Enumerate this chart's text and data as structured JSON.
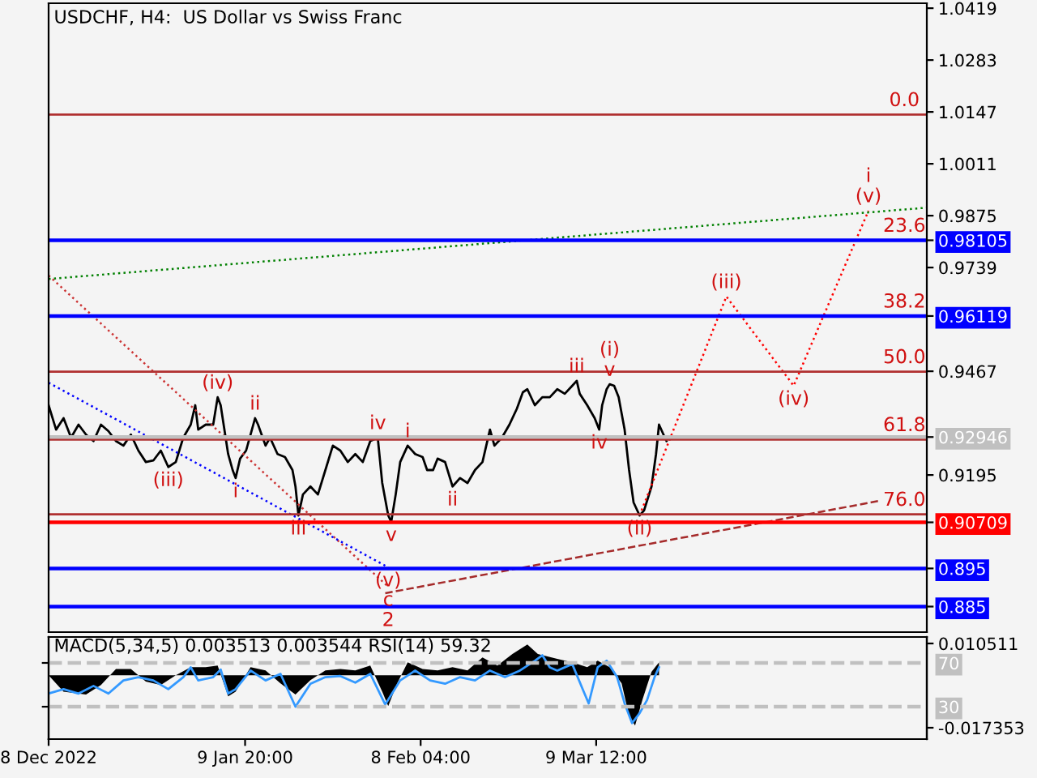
{
  "chart_data": [
    {
      "type": "line",
      "title": "USDCHF, H4:  US Dollar vs Swiss Franc",
      "xlim": [
        "2022-12-08T00:00",
        "2023-05-03T18:00"
      ],
      "ylim": [
        0.8783,
        1.0432
      ],
      "yticks": [
        1.0419,
        1.0283,
        1.0147,
        1.0011,
        0.9875,
        0.98105,
        0.9739,
        0.96119,
        0.9467,
        0.92946,
        0.9195,
        0.90709,
        0.895,
        0.885
      ],
      "tick_labels": "y",
      "grid": false,
      "legend": false,
      "series": [
        {
          "color": "#000000",
          "x": [
            "2022-12-08T00:00",
            "2022-12-09T06:00",
            "2022-12-10T12:00",
            "2022-12-11T18:00",
            "2022-12-13T00:00",
            "2022-12-14T06:00",
            "2022-12-15T12:00",
            "2022-12-16T18:00",
            "2022-12-18T00:00",
            "2022-12-19T06:00",
            "2022-12-20T12:00",
            "2022-12-21T18:00",
            "2022-12-23T00:00",
            "2022-12-24T06:00",
            "2022-12-25T12:00",
            "2022-12-26T18:00",
            "2022-12-28T00:00",
            "2022-12-29T06:00",
            "2022-12-30T12:00",
            "2022-12-31T18:00",
            "2023-01-01T12:00",
            "2023-01-02T00:00",
            "2023-01-03T06:00",
            "2023-01-04T12:00",
            "2023-01-05T06:00",
            "2023-01-05T18:00",
            "2023-01-07T00:00",
            "2023-01-07T18:00",
            "2023-01-08T06:00",
            "2023-01-09T00:00",
            "2023-01-10T00:00",
            "2023-01-10T18:00",
            "2023-01-11T12:00",
            "2023-01-12T00:00",
            "2023-01-13T06:00",
            "2023-01-14T00:00",
            "2023-01-15T06:00",
            "2023-01-16T12:00",
            "2023-01-17T18:00",
            "2023-01-18T06:00",
            "2023-01-18T18:00",
            "2023-01-19T12:00",
            "2023-01-20T18:00",
            "2023-01-22T00:00",
            "2023-01-23T06:00",
            "2023-01-24T12:00",
            "2023-01-25T18:00",
            "2023-01-27T00:00",
            "2023-01-28T06:00",
            "2023-01-29T12:00",
            "2023-01-30T18:00",
            "2023-02-01T00:00",
            "2023-02-01T18:00",
            "2023-02-02T18:00",
            "2023-02-03T06:00",
            "2023-02-04T00:00",
            "2023-02-04T18:00",
            "2023-02-06T00:00",
            "2023-02-07T06:00",
            "2023-02-08T12:00",
            "2023-02-09T06:00",
            "2023-02-10T06:00",
            "2023-02-11T00:00",
            "2023-02-12T06:00",
            "2023-02-13T12:00",
            "2023-02-14T18:00",
            "2023-02-16T00:00",
            "2023-02-17T06:00",
            "2023-02-18T12:00",
            "2023-02-19T18:00",
            "2023-02-20T12:00",
            "2023-02-21T18:00",
            "2023-02-23T00:00",
            "2023-02-24T06:00",
            "2023-02-25T06:00",
            "2023-02-26T00:00",
            "2023-02-27T06:00",
            "2023-02-28T12:00",
            "2023-03-01T18:00",
            "2023-03-03T00:00",
            "2023-03-04T06:00",
            "2023-03-05T12:00",
            "2023-03-06T06:00",
            "2023-03-06T18:00",
            "2023-03-08T00:00",
            "2023-03-09T06:00",
            "2023-03-10T00:00",
            "2023-03-10T12:00",
            "2023-03-11T06:00",
            "2023-03-11T18:00",
            "2023-03-12T12:00",
            "2023-03-13T06:00",
            "2023-03-14T06:00",
            "2023-03-15T00:00",
            "2023-03-15T18:00",
            "2023-03-16T18:00",
            "2023-03-17T12:00",
            "2023-03-18T18:00",
            "2023-03-19T12:00",
            "2023-03-20T00:00",
            "2023-03-20T18:00",
            "2023-03-21T06:00"
          ],
          "values": [
            0.9378,
            0.9314,
            0.9344,
            0.9293,
            0.9327,
            0.9301,
            0.9284,
            0.9327,
            0.931,
            0.9284,
            0.9272,
            0.9301,
            0.9259,
            0.9229,
            0.9233,
            0.9259,
            0.9216,
            0.9229,
            0.9293,
            0.9327,
            0.9378,
            0.9314,
            0.9327,
            0.9327,
            0.9399,
            0.9378,
            0.925,
            0.9208,
            0.9187,
            0.9238,
            0.9259,
            0.9301,
            0.9344,
            0.9327,
            0.9272,
            0.9293,
            0.925,
            0.9242,
            0.9208,
            0.9165,
            0.9089,
            0.9144,
            0.9165,
            0.9144,
            0.9208,
            0.9272,
            0.9259,
            0.9229,
            0.925,
            0.9229,
            0.9284,
            0.9293,
            0.9174,
            0.9089,
            0.9072,
            0.9144,
            0.9229,
            0.9272,
            0.925,
            0.9242,
            0.9208,
            0.9208,
            0.9238,
            0.9229,
            0.9165,
            0.9187,
            0.9174,
            0.9208,
            0.9229,
            0.9314,
            0.9272,
            0.9293,
            0.9327,
            0.9369,
            0.9412,
            0.942,
            0.9378,
            0.9399,
            0.9399,
            0.942,
            0.9408,
            0.9429,
            0.9442,
            0.9408,
            0.9378,
            0.9344,
            0.9314,
            0.9378,
            0.942,
            0.9433,
            0.9429,
            0.9399,
            0.9314,
            0.9208,
            0.9123,
            0.9089,
            0.9102,
            0.9165,
            0.925,
            0.9327,
            0.9301,
            0.9284
          ]
        },
        {
          "color": "#ff0000",
          "line_style": "dotted",
          "x": [
            "2023-03-16T18:00",
            "2023-03-31T06:00",
            "2023-04-11T12:00",
            "2023-04-24T00:00"
          ],
          "values": [
            0.9089,
            0.9663,
            0.9429,
            0.9888
          ]
        },
        {
          "color": "#008000",
          "line_style": "dotted",
          "x": [
            "2022-12-08T00:00",
            "2023-05-03T18:00"
          ],
          "values": [
            0.9709,
            0.9896
          ]
        },
        {
          "color": "#a52a2a",
          "line_style": "dashed",
          "x": [
            "2023-02-02T06:00",
            "2023-04-25T18:00"
          ],
          "values": [
            0.8885,
            0.9127
          ]
        },
        {
          "color": "#cc3333",
          "line_style": "dotted",
          "x": [
            "2022-12-08T00:00",
            "2023-02-02T18:00"
          ],
          "values": [
            0.9718,
            0.8902
          ]
        },
        {
          "color": "#0000ff",
          "line_style": "dotted",
          "x": [
            "2022-12-08T00:00",
            "2023-02-02T18:00"
          ],
          "values": [
            0.9437,
            0.8953
          ]
        }
      ],
      "ref_lines": [
        {
          "axis": "y",
          "value": 1.014,
          "color": "#b03030"
        },
        {
          "axis": "y",
          "value": 0.98105,
          "color": "#0000ff"
        },
        {
          "axis": "y",
          "value": 0.96119,
          "color": "#0000ff"
        },
        {
          "axis": "y",
          "value": 0.9466,
          "color": "#b03030"
        },
        {
          "axis": "y",
          "value": 0.9288,
          "color": "#b03030"
        },
        {
          "axis": "y",
          "value": 0.9092,
          "color": "#b03030"
        },
        {
          "axis": "y",
          "value": 0.92946,
          "color": "#c0c0c0"
        },
        {
          "axis": "y",
          "value": 0.90709,
          "color": "#ff0000"
        },
        {
          "axis": "y",
          "value": 0.895,
          "color": "#0000ff"
        },
        {
          "axis": "y",
          "value": 0.885,
          "color": "#0000ff"
        }
      ],
      "annotations": [
        {
          "text": "0.0",
          "x": "2023-04-30T00:00",
          "y": 1.014
        },
        {
          "text": "23.6",
          "x": "2023-04-30T00:00",
          "y": 0.98105
        },
        {
          "text": "38.2",
          "x": "2023-04-30T00:00",
          "y": 0.96119
        },
        {
          "text": "50.0",
          "x": "2023-04-30T00:00",
          "y": 0.9466
        },
        {
          "text": "61.8",
          "x": "2023-04-30T00:00",
          "y": 0.9288
        },
        {
          "text": "76.0",
          "x": "2023-04-30T00:00",
          "y": 0.9092
        },
        {
          "text": "(iv)",
          "x": "2023-01-05T06:00",
          "y": 0.9399
        },
        {
          "text": "ii",
          "x": "2023-01-11T12:00",
          "y": 0.9344
        },
        {
          "text": "(iii)",
          "x": "2022-12-28T00:00",
          "y": 0.9216
        },
        {
          "text": "i",
          "x": "2023-01-08T06:00",
          "y": 0.9187
        },
        {
          "text": "iii",
          "x": "2023-01-18T18:00",
          "y": 0.9089
        },
        {
          "text": "iv",
          "x": "2023-02-01T00:00",
          "y": 0.9293
        },
        {
          "text": "i",
          "x": "2023-02-06T00:00",
          "y": 0.9272
        },
        {
          "text": "v",
          "x": "2023-02-03T06:00",
          "y": 0.9072
        },
        {
          "text": "(v)",
          "x": "2023-02-02T18:00",
          "y": 0.8953
        },
        {
          "text": "c",
          "x": "2023-02-02T18:00",
          "y": 0.8902
        },
        {
          "text": "2",
          "x": "2023-02-02T18:00",
          "y": 0.8902
        },
        {
          "text": "ii",
          "x": "2023-02-13T12:00",
          "y": 0.9165
        },
        {
          "text": "iii",
          "x": "2023-03-06T06:00",
          "y": 0.9442
        },
        {
          "text": "v",
          "x": "2023-03-11T18:00",
          "y": 0.9433
        },
        {
          "text": "(i)",
          "x": "2023-03-11T18:00",
          "y": 0.9433
        },
        {
          "text": "iv",
          "x": "2023-03-10T00:00",
          "y": 0.9314
        },
        {
          "text": "(ii)",
          "x": "2023-03-16T18:00",
          "y": 0.9089
        },
        {
          "text": "(iii)",
          "x": "2023-03-31T06:00",
          "y": 0.9663
        },
        {
          "text": "(iv)",
          "x": "2023-04-11T12:00",
          "y": 0.9429
        },
        {
          "text": "(v)",
          "x": "2023-04-24T00:00",
          "y": 0.9888
        },
        {
          "text": "i",
          "x": "2023-04-24T00:00",
          "y": 0.9888
        }
      ]
    },
    {
      "type": "line",
      "title": "MACD(5,34,5) 0.003513 0.003544 RSI(14) 59.32",
      "xlim": [
        "2022-12-08T00:00",
        "2023-05-03T18:00"
      ],
      "xticks": [
        {
          "value": "2022-12-08T00:00",
          "label": "8 Dec 2022"
        },
        {
          "value": "2023-01-09T20:00",
          "label": "9 Jan 20:00"
        },
        {
          "value": "2023-02-08T04:00",
          "label": "8 Feb 04:00"
        },
        {
          "value": "2023-03-09T12:00",
          "label": "9 Mar 12:00"
        }
      ],
      "ylim": [
        0.4,
        93.7
      ],
      "yticks": [
        70,
        30
      ],
      "y2lim": [
        -0.02111,
        0.012655
      ],
      "y2ticks": [
        0.010511,
        -0.017353
      ],
      "grid": false,
      "legend": false,
      "series": [
        {
          "type": "area",
          "axis": "y2",
          "color": "#000000",
          "x": [
            "2022-12-08T00:00",
            "2022-12-10T12:00",
            "2022-12-14T06:00",
            "2022-12-16T18:00",
            "2022-12-19T06:00",
            "2022-12-21T18:00",
            "2022-12-24T06:00",
            "2022-12-26T18:00",
            "2022-12-29T06:00",
            "2022-12-31T18:00",
            "2023-01-03T06:00",
            "2023-01-05T06:00",
            "2023-01-07T00:00",
            "2023-01-08T06:00",
            "2023-01-10T18:00",
            "2023-01-13T06:00",
            "2023-01-15T18:00",
            "2023-01-18T06:00",
            "2023-01-20T18:00",
            "2023-01-23T06:00",
            "2023-01-25T18:00",
            "2023-01-28T06:00",
            "2023-01-30T18:00",
            "2023-02-01T18:00",
            "2023-02-02T18:00",
            "2023-02-04T06:00",
            "2023-02-06T00:00",
            "2023-02-08T12:00",
            "2023-02-11T00:00",
            "2023-02-13T12:00",
            "2023-02-16T00:00",
            "2023-02-18T12:00",
            "2023-02-21T00:00",
            "2023-02-23T12:00",
            "2023-02-26T00:00",
            "2023-02-27T18:00",
            "2023-03-03T00:00",
            "2023-03-05T12:00",
            "2023-03-08T00:00",
            "2023-03-09T18:00",
            "2023-03-11T18:00",
            "2023-03-13T18:00",
            "2023-03-15T00:00",
            "2023-03-16T00:00",
            "2023-03-17T06:00",
            "2023-03-18T18:00",
            "2023-03-20T00:00"
          ],
          "values": [
            0,
            -0.0054,
            -0.0064,
            -0.0032,
            0.0021,
            0.0021,
            -0.0021,
            -0.0032,
            0,
            0.0027,
            0.0027,
            0.0032,
            -0.007,
            -0.0054,
            0.0027,
            0.0016,
            -0.0027,
            -0.0064,
            -0.0016,
            0.0016,
            0.0021,
            0.0016,
            0.0032,
            -0.0054,
            -0.0102,
            -0.0027,
            0.0043,
            0.0021,
            0.0016,
            0.0027,
            0.0016,
            0.0059,
            0.0032,
            0.007,
            0.0102,
            0.007,
            0.0054,
            0.0043,
            0.0027,
            0.0048,
            0.0027,
            -0.0027,
            -0.0134,
            -0.0166,
            -0.008,
            0.0011,
            0.0043
          ]
        },
        {
          "type": "line",
          "color": "#3399ff",
          "x": [
            "2022-12-08T00:00",
            "2022-12-10T12:00",
            "2022-12-13T00:00",
            "2022-12-15T12:00",
            "2022-12-18T00:00",
            "2022-12-20T12:00",
            "2022-12-23T00:00",
            "2022-12-25T12:00",
            "2022-12-28T00:00",
            "2022-12-30T12:00",
            "2022-12-31T18:00",
            "2023-01-02T00:00",
            "2023-01-04T12:00",
            "2023-01-05T18:00",
            "2023-01-07T00:00",
            "2023-01-08T06:00",
            "2023-01-10T18:00",
            "2023-01-13T06:00",
            "2023-01-15T18:00",
            "2023-01-18T06:00",
            "2023-01-20T18:00",
            "2023-01-23T06:00",
            "2023-01-25T18:00",
            "2023-01-28T06:00",
            "2023-01-30T18:00",
            "2023-02-02T06:00",
            "2023-02-04T18:00",
            "2023-02-07T06:00",
            "2023-02-09T18:00",
            "2023-02-12T06:00",
            "2023-02-14T18:00",
            "2023-02-17T06:00",
            "2023-02-19T18:00",
            "2023-02-22T06:00",
            "2023-02-24T18:00",
            "2023-02-27T06:00",
            "2023-02-28T12:00",
            "2023-03-01T18:00",
            "2023-03-03T00:00",
            "2023-03-05T12:00",
            "2023-03-07T06:00",
            "2023-03-08T06:00",
            "2023-03-09T18:00",
            "2023-03-11T06:00",
            "2023-03-13T00:00",
            "2023-03-14T06:00",
            "2023-03-15T12:00",
            "2023-03-16T18:00",
            "2023-03-18T00:00",
            "2023-03-19T06:00",
            "2023-03-20T00:00"
          ],
          "values": [
            42,
            46,
            42,
            49,
            42,
            54,
            57,
            54,
            46,
            57,
            66,
            54,
            57,
            64,
            42,
            46,
            63,
            54,
            60,
            30,
            51,
            57,
            58,
            52,
            60,
            32,
            54,
            63,
            54,
            51,
            57,
            54,
            63,
            57,
            63,
            72,
            77,
            66,
            63,
            69,
            46,
            33,
            66,
            72,
            57,
            33,
            15,
            24,
            36,
            57,
            66
          ]
        }
      ],
      "ref_lines": [
        {
          "axis": "y",
          "value": 70,
          "color": "#c0c0c0",
          "line_style": "dashed"
        },
        {
          "axis": "y",
          "value": 30,
          "color": "#c0c0c0",
          "line_style": "dashed"
        }
      ]
    }
  ]
}
